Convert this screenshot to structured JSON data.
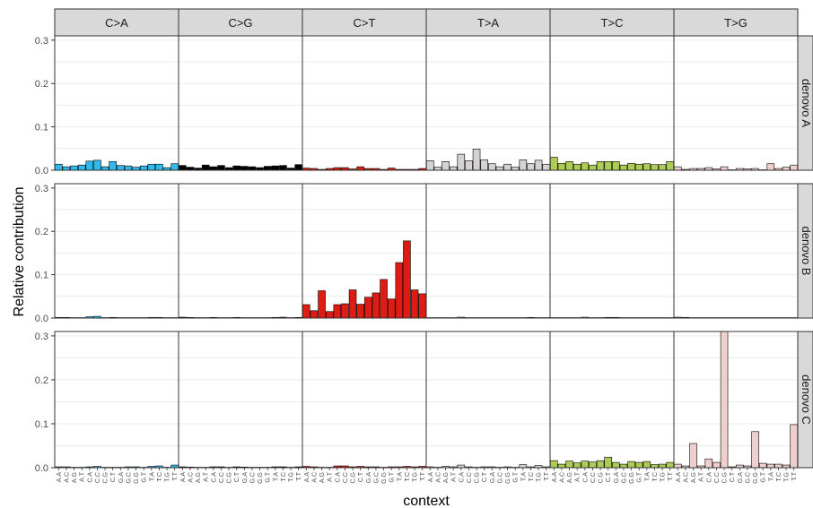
{
  "chart_data": {
    "type": "bar",
    "xlabel": "context",
    "ylabel": "Relative contribution",
    "ylim": [
      0,
      0.31
    ],
    "yticks": [
      "0.0",
      "0.1",
      "0.2",
      "0.3"
    ],
    "grid": true,
    "contexts": [
      "A.A",
      "A.C",
      "A.G",
      "A.T",
      "C.A",
      "C.C",
      "C.G",
      "C.T",
      "G.A",
      "G.C",
      "G.G",
      "G.T",
      "T.A",
      "T.C",
      "T.G",
      "T.T"
    ],
    "columns": [
      {
        "label": "C>A",
        "color": "#2EBAED"
      },
      {
        "label": "C>G",
        "color": "#000000"
      },
      {
        "label": "C>T",
        "color": "#DE1C14"
      },
      {
        "label": "T>A",
        "color": "#D4D2D2"
      },
      {
        "label": "T>C",
        "color": "#ADCC54"
      },
      {
        "label": "T>G",
        "color": "#F0D0CE"
      }
    ],
    "rows": [
      {
        "label": "denovo A",
        "values": [
          [
            0.014,
            0.008,
            0.01,
            0.012,
            0.021,
            0.023,
            0.008,
            0.02,
            0.011,
            0.01,
            0.007,
            0.01,
            0.014,
            0.014,
            0.006,
            0.015
          ],
          [
            0.011,
            0.007,
            0.005,
            0.012,
            0.008,
            0.011,
            0.006,
            0.01,
            0.009,
            0.008,
            0.006,
            0.009,
            0.01,
            0.011,
            0.005,
            0.013
          ],
          [
            0.005,
            0.004,
            0.002,
            0.004,
            0.006,
            0.006,
            0.003,
            0.008,
            0.004,
            0.004,
            0.002,
            0.005,
            0.002,
            0.002,
            0.002,
            0.004
          ],
          [
            0.022,
            0.007,
            0.02,
            0.008,
            0.037,
            0.022,
            0.049,
            0.024,
            0.015,
            0.008,
            0.014,
            0.007,
            0.024,
            0.015,
            0.023,
            0.014
          ],
          [
            0.03,
            0.016,
            0.02,
            0.014,
            0.017,
            0.012,
            0.02,
            0.02,
            0.02,
            0.012,
            0.016,
            0.014,
            0.015,
            0.013,
            0.013,
            0.02
          ],
          [
            0.008,
            0.002,
            0.004,
            0.004,
            0.006,
            0.003,
            0.008,
            0.001,
            0.004,
            0.003,
            0.004,
            0.001,
            0.015,
            0.004,
            0.007,
            0.012
          ]
        ]
      },
      {
        "label": "denovo B",
        "values": [
          [
            0.0015,
            0.0015,
            0.0005,
            0.001,
            0.003,
            0.004,
            0.001,
            0.0015,
            0.001,
            0.0005,
            0.0005,
            0.0005,
            0.0015,
            0.0015,
            0.0005,
            0.001
          ],
          [
            0.002,
            0.0015,
            0.0005,
            0.0005,
            0.0015,
            0.001,
            0.0005,
            0.0015,
            0.001,
            0.0005,
            0.001,
            0.0005,
            0.0015,
            0.002,
            0.0005,
            0.0015
          ],
          [
            0.031,
            0.017,
            0.063,
            0.015,
            0.031,
            0.033,
            0.065,
            0.032,
            0.048,
            0.058,
            0.089,
            0.044,
            0.128,
            0.178,
            0.065,
            0.056
          ],
          [
            0.001,
            0.0005,
            0.0005,
            0.001,
            0.002,
            0.0005,
            0.0005,
            0.0005,
            0.0005,
            0.0005,
            0.0005,
            0.0005,
            0.0005,
            0.0015,
            0.0005,
            0.0005
          ],
          [
            0.001,
            0.001,
            0.0005,
            0.0005,
            0.002,
            0.0005,
            0.001,
            0.0015,
            0.0015,
            0.001,
            0.0005,
            0.001,
            0.0005,
            0.001,
            0.0005,
            0.001
          ],
          [
            0.002,
            0.0015,
            0.0005,
            0.0005,
            0.001,
            0.0005,
            0.001,
            0.0005,
            0.0005,
            0.0005,
            0.0005,
            0.0005,
            0.001,
            0.001,
            0.0005,
            0.001
          ]
        ]
      },
      {
        "label": "denovo C",
        "values": [
          [
            0.002,
            0.002,
            0.001,
            0.001,
            0.002,
            0.003,
            0.001,
            0.001,
            0.001,
            0.002,
            0.002,
            0.001,
            0.003,
            0.004,
            0.001,
            0.006
          ],
          [
            0.002,
            0.0015,
            0.0005,
            0.001,
            0.002,
            0.002,
            0.001,
            0.002,
            0.0015,
            0.001,
            0.001,
            0.001,
            0.002,
            0.002,
            0.001,
            0.002
          ],
          [
            0.003,
            0.002,
            0.001,
            0.001,
            0.004,
            0.004,
            0.002,
            0.003,
            0.002,
            0.002,
            0.001,
            0.002,
            0.002,
            0.003,
            0.002,
            0.003
          ],
          [
            0.002,
            0.001,
            0.003,
            0.002,
            0.006,
            0.002,
            0.001,
            0.002,
            0.002,
            0.001,
            0.002,
            0.001,
            0.007,
            0.002,
            0.005,
            0.002
          ],
          [
            0.016,
            0.008,
            0.015,
            0.011,
            0.015,
            0.013,
            0.016,
            0.024,
            0.012,
            0.008,
            0.014,
            0.012,
            0.014,
            0.007,
            0.008,
            0.012
          ],
          [
            0.008,
            0.004,
            0.055,
            0.004,
            0.02,
            0.012,
            0.31,
            0.002,
            0.006,
            0.004,
            0.082,
            0.01,
            0.008,
            0.008,
            0.006,
            0.098
          ]
        ]
      }
    ]
  }
}
